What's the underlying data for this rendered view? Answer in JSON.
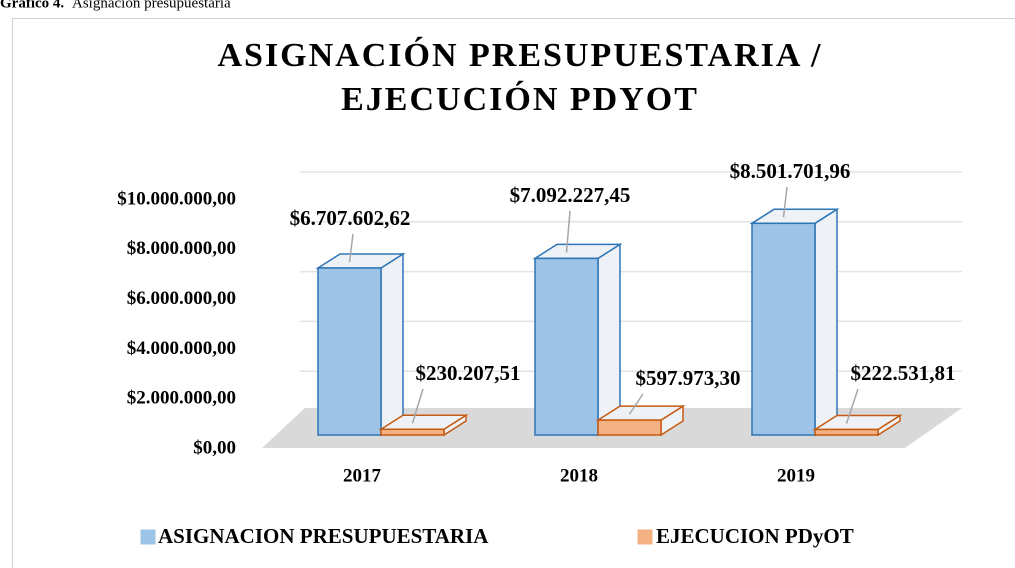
{
  "caption": {
    "label": "Gráfico 4.",
    "text": "Asignación presupuestaria"
  },
  "chart_data": {
    "type": "bar3d",
    "title": [
      "ASIGNACIÓN PRESUPUESTARIA /",
      "EJECUCIÓN PDYOT"
    ],
    "categories": [
      "2017",
      "2018",
      "2019"
    ],
    "series": [
      {
        "name": "ASIGNACION PRESUPUESTARIA",
        "color": "#9dc3e6",
        "edge": "#2e75b6",
        "values": [
          6707602.62,
          7092227.45,
          8501701.96
        ],
        "value_labels": [
          "$6.707.602,62",
          "$7.092.227,45",
          "$8.501.701,96"
        ]
      },
      {
        "name": "EJECUCION PDyOT",
        "color": "#f4b183",
        "edge": "#c55a11",
        "values": [
          230207.51,
          597973.3,
          222531.81
        ],
        "value_labels": [
          "$230.207,51",
          "$597.973,30",
          "$222.531,81"
        ]
      }
    ],
    "ylim": [
      0,
      10000000
    ],
    "yticks": [
      {
        "value": 0,
        "label": "$0,00"
      },
      {
        "value": 2000000,
        "label": "$2.000.000,00"
      },
      {
        "value": 4000000,
        "label": "$4.000.000,00"
      },
      {
        "value": 6000000,
        "label": "$6.000.000,00"
      },
      {
        "value": 8000000,
        "label": "$8.000.000,00"
      },
      {
        "value": 10000000,
        "label": "$10.000.000,00"
      }
    ],
    "grid": true,
    "legend": "bottom"
  }
}
